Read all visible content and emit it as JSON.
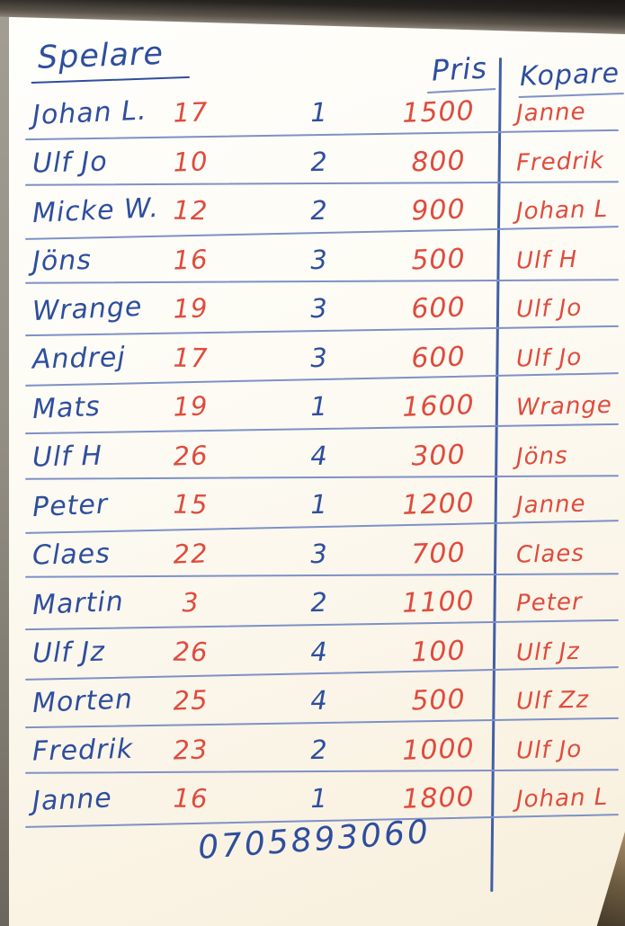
{
  "headers": {
    "players": "Spelare",
    "price": "Pris",
    "buyer": "Kopare"
  },
  "rows": [
    {
      "player": "Johan L.",
      "number": "17",
      "count": "1",
      "price": "1500",
      "buyer": "Janne"
    },
    {
      "player": "Ulf Jo",
      "number": "10",
      "count": "2",
      "price": "800",
      "buyer": "Fredrik"
    },
    {
      "player": "Micke W.",
      "number": "12",
      "count": "2",
      "price": "900",
      "buyer": "Johan L"
    },
    {
      "player": "Jöns",
      "number": "16",
      "count": "3",
      "price": "500",
      "buyer": "Ulf H"
    },
    {
      "player": "Wrange",
      "number": "19",
      "count": "3",
      "price": "600",
      "buyer": "Ulf Jo"
    },
    {
      "player": "Andrej",
      "number": "17",
      "count": "3",
      "price": "600",
      "buyer": "Ulf Jo"
    },
    {
      "player": "Mats",
      "number": "19",
      "count": "1",
      "price": "1600",
      "buyer": "Wrange"
    },
    {
      "player": "Ulf H",
      "number": "26",
      "count": "4",
      "price": "300",
      "buyer": "Jöns"
    },
    {
      "player": "Peter",
      "number": "15",
      "count": "1",
      "price": "1200",
      "buyer": "Janne"
    },
    {
      "player": "Claes",
      "number": "22",
      "count": "3",
      "price": "700",
      "buyer": "Claes"
    },
    {
      "player": "Martin",
      "number": "3",
      "count": "2",
      "price": "1100",
      "buyer": "Peter"
    },
    {
      "player": "Ulf Jz",
      "number": "26",
      "count": "4",
      "price": "100",
      "buyer": "Ulf Jz"
    },
    {
      "player": "Morten",
      "number": "25",
      "count": "4",
      "price": "500",
      "buyer": "Ulf Zz"
    },
    {
      "player": "Fredrik",
      "number": "23",
      "count": "2",
      "price": "1000",
      "buyer": "Ulf Jo"
    },
    {
      "player": "Janne",
      "number": "16",
      "count": "1",
      "price": "1800",
      "buyer": "Johan L"
    }
  ],
  "footer": {
    "phone": "0705893060"
  },
  "colors": {
    "blue_ink": "#2e4e9e",
    "red_ink": "#df4b3d",
    "line_blue": "#7e91c6",
    "paper_top": "#fefefb",
    "paper_bottom": "#f8efdc"
  }
}
